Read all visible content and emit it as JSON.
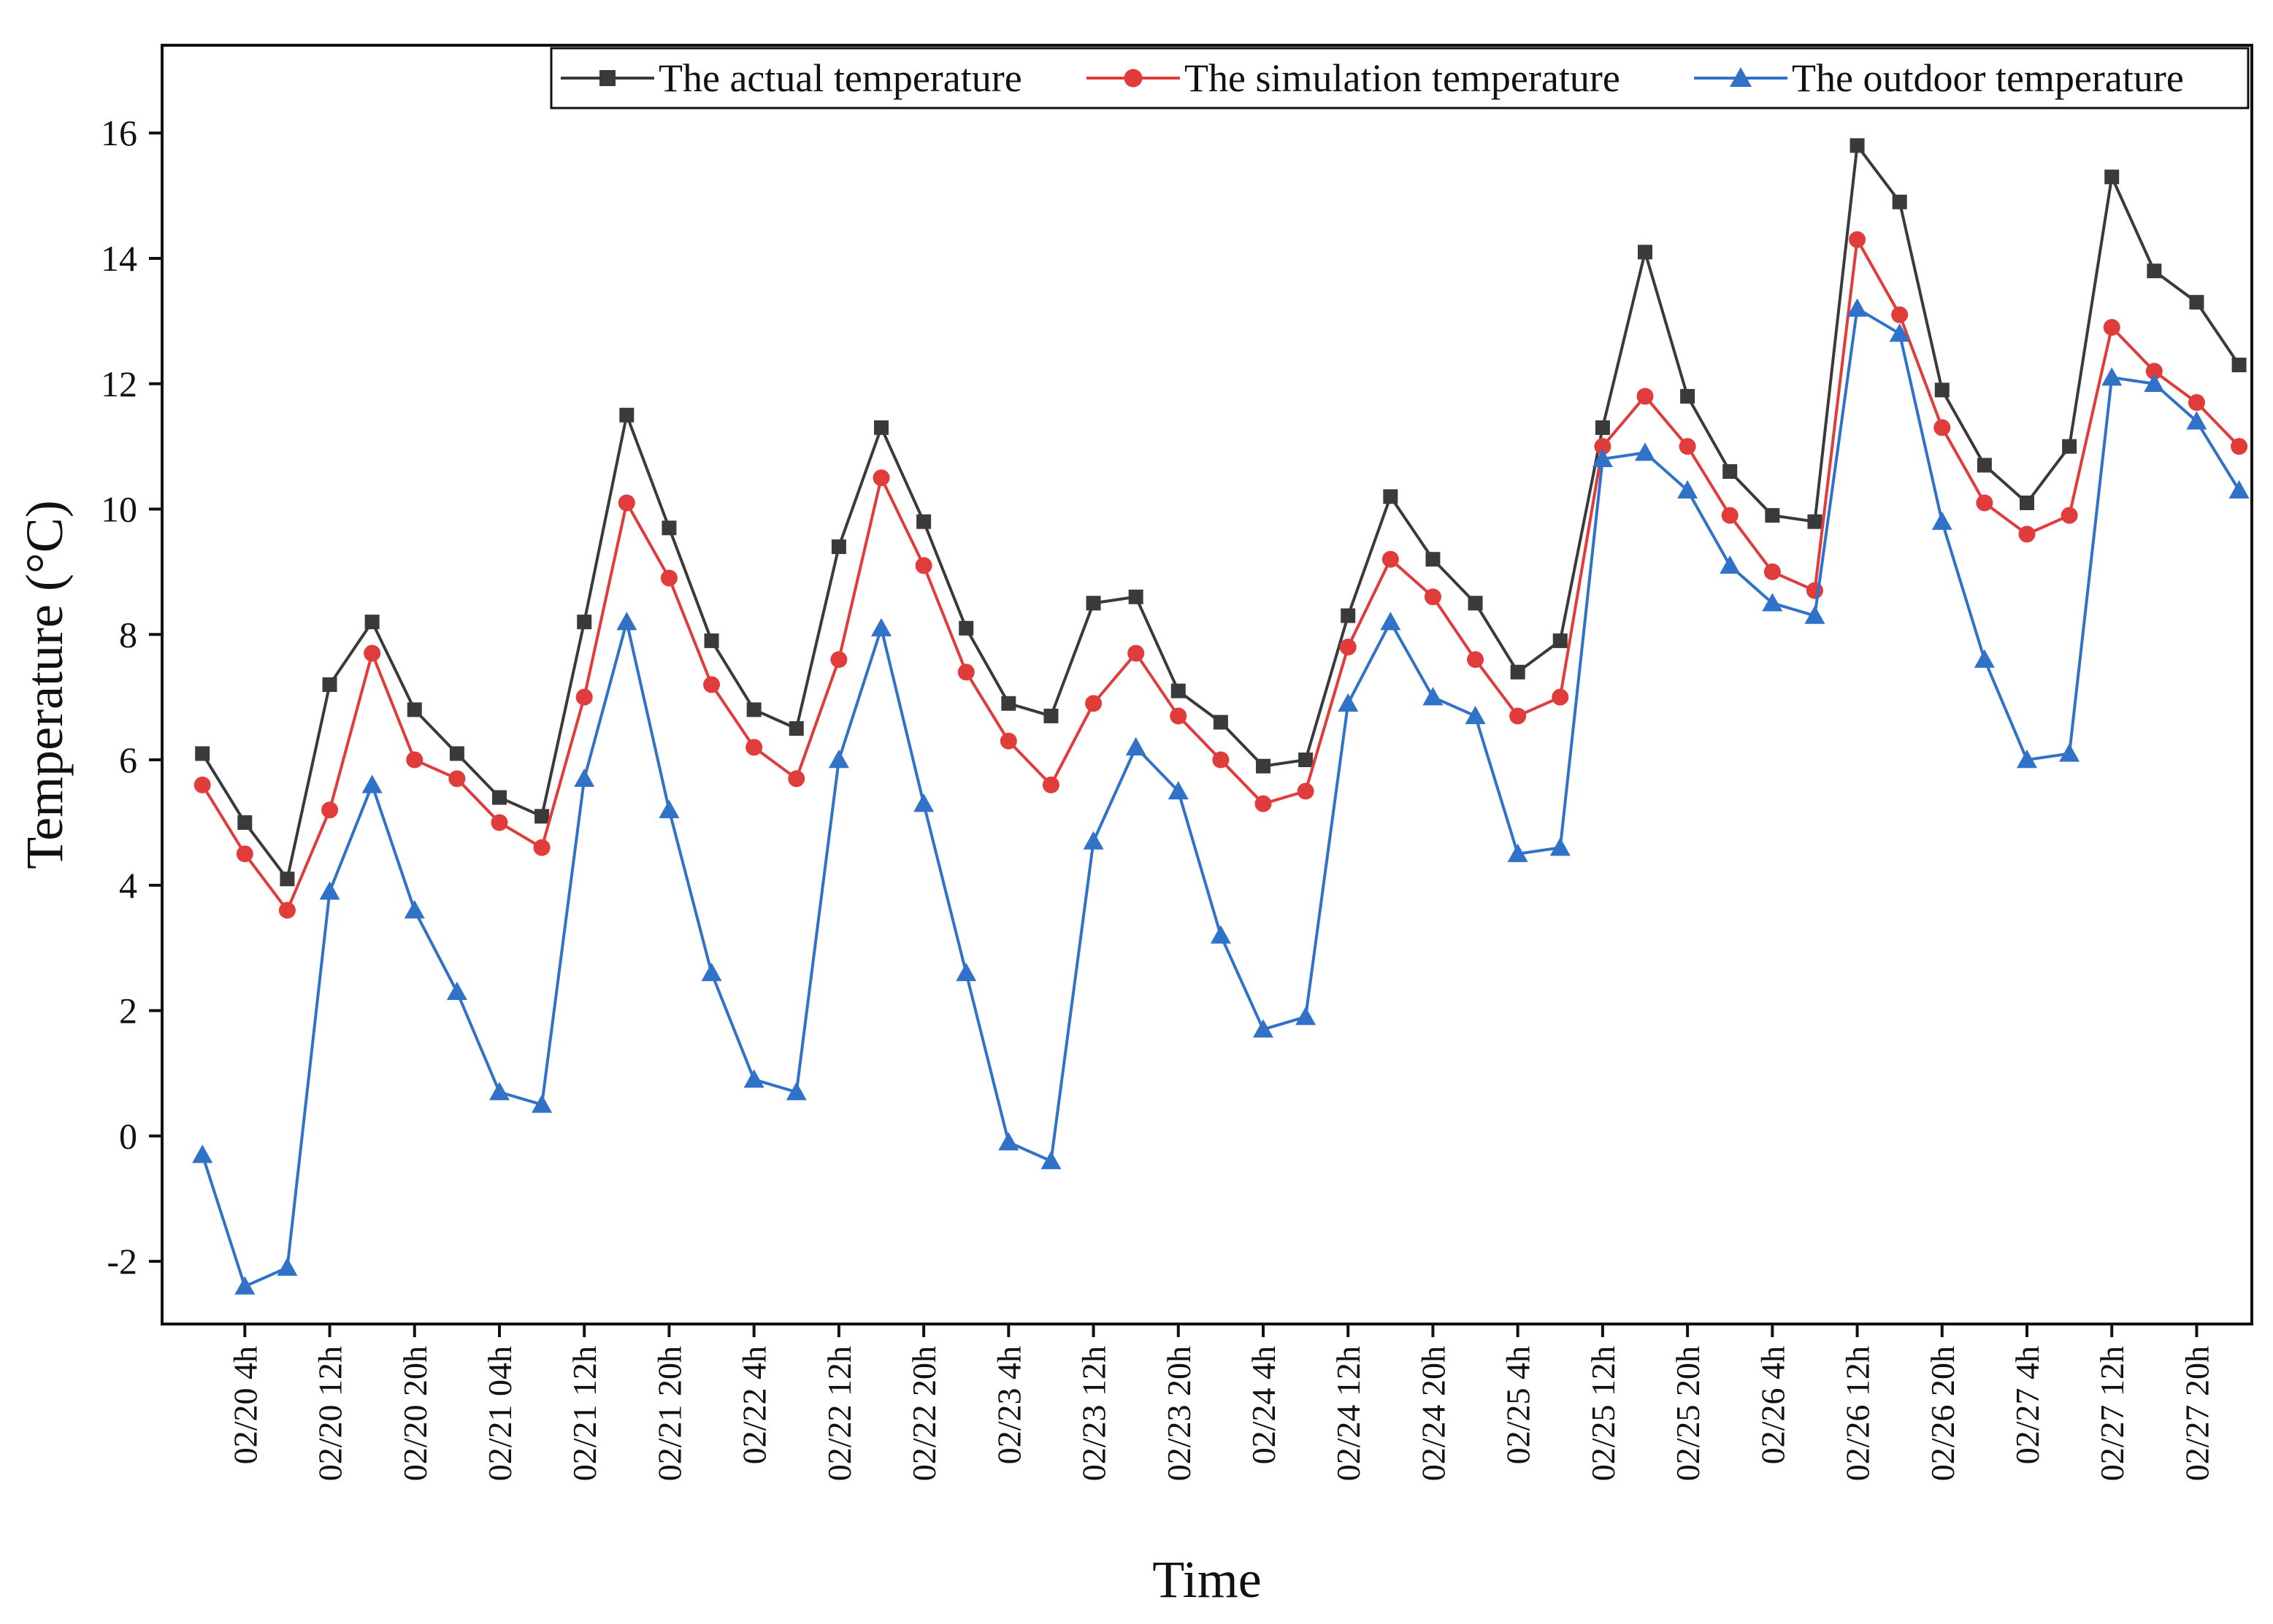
{
  "chart_data": {
    "type": "line",
    "title": "",
    "xlabel": "Time",
    "ylabel": "Temperature (°C)",
    "ylim": [
      -3,
      17.4
    ],
    "y_ticks": [
      -2,
      0,
      2,
      4,
      6,
      8,
      10,
      12,
      14,
      16
    ],
    "y_tick_labels": [
      "-2",
      "0",
      "2",
      "4",
      "6",
      "8",
      "10",
      "12",
      "14",
      "16"
    ],
    "x_tick_labels": [
      "02/20 4h",
      "02/20 12h",
      "02/20 20h",
      "02/21 04h",
      "02/21 12h",
      "02/21 20h",
      "02/22 4h",
      "02/22 12h",
      "02/22 20h",
      "02/23 4h",
      "02/23 12h",
      "02/23 20h",
      "02/24 4h",
      "02/24 12h",
      "02/24 20h",
      "02/25 4h",
      "02/25 12h",
      "02/25 20h",
      "02/26 4h",
      "02/26 12h",
      "02/26 20h",
      "02/27 4h",
      "02/27 12h",
      "02/27 20h"
    ],
    "x_tick_positions": [
      1,
      3,
      5,
      7,
      9,
      11,
      13,
      15,
      17,
      19,
      21,
      23,
      25,
      27,
      29,
      31,
      33,
      35,
      37,
      39,
      41,
      43,
      45,
      47
    ],
    "x_range": [
      -0.95,
      48.3
    ],
    "legend_position": "top-right",
    "series": [
      {
        "name": "The actual temperature",
        "color": "#3a3a3a",
        "marker": "square",
        "values": [
          6.1,
          5.0,
          4.1,
          7.2,
          8.2,
          6.8,
          6.1,
          5.4,
          5.1,
          8.2,
          11.5,
          9.7,
          7.9,
          6.8,
          6.5,
          9.4,
          11.3,
          9.8,
          8.1,
          6.9,
          6.7,
          8.5,
          8.6,
          7.1,
          6.6,
          5.9,
          6.0,
          8.3,
          10.2,
          9.2,
          8.5,
          7.4,
          7.9,
          11.3,
          14.1,
          11.8,
          10.6,
          9.9,
          9.8,
          15.8,
          14.9,
          11.9,
          10.7,
          10.1,
          11.0,
          15.3,
          13.8,
          13.3,
          12.3
        ]
      },
      {
        "name": "The simulation temperature",
        "color": "#e03c3c",
        "marker": "circle",
        "values": [
          5.6,
          4.5,
          3.6,
          5.2,
          7.7,
          6.0,
          5.7,
          5.0,
          4.6,
          7.0,
          10.1,
          8.9,
          7.2,
          6.2,
          5.7,
          7.6,
          10.5,
          9.1,
          7.4,
          6.3,
          5.6,
          6.9,
          7.7,
          6.7,
          6.0,
          5.3,
          5.5,
          7.8,
          9.2,
          8.6,
          7.6,
          6.7,
          7.0,
          11.0,
          11.8,
          11.0,
          9.9,
          9.0,
          8.7,
          14.3,
          13.1,
          11.3,
          10.1,
          9.6,
          9.9,
          12.9,
          12.2,
          11.7,
          11.0
        ]
      },
      {
        "name": "The outdoor temperature",
        "color": "#2f72c8",
        "marker": "triangle",
        "values": [
          -0.3,
          -2.4,
          -2.1,
          3.9,
          5.6,
          3.6,
          2.3,
          0.7,
          0.5,
          5.7,
          8.2,
          5.2,
          2.6,
          0.9,
          0.7,
          6.0,
          8.1,
          5.3,
          2.6,
          -0.1,
          -0.4,
          4.7,
          6.2,
          5.5,
          3.2,
          1.7,
          1.9,
          6.9,
          8.2,
          7.0,
          6.7,
          4.5,
          4.6,
          10.8,
          10.9,
          10.3,
          9.1,
          8.5,
          8.3,
          13.2,
          12.8,
          9.8,
          7.6,
          6.0,
          6.1,
          12.1,
          12.0,
          11.4,
          10.3
        ]
      }
    ]
  }
}
